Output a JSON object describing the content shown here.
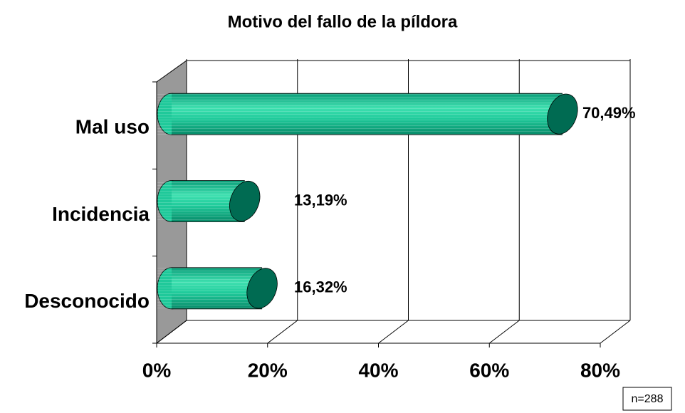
{
  "chart_data": {
    "type": "bar",
    "orientation": "horizontal",
    "title": "Motivo del fallo de la píldora",
    "categories": [
      "Mal uso",
      "Incidencia",
      "Desconocido"
    ],
    "values": [
      70.49,
      13.19,
      16.32
    ],
    "value_labels": [
      "70,49%",
      "13,19%",
      "16,32%"
    ],
    "color": "#1fc99a",
    "xlim": [
      0,
      80
    ],
    "xticks": [
      {
        "value": 0,
        "label": "0%"
      },
      {
        "value": 20,
        "label": "20%"
      },
      {
        "value": 40,
        "label": "40%"
      },
      {
        "value": 60,
        "label": "60%"
      },
      {
        "value": 80,
        "label": "80%"
      }
    ],
    "grid": true,
    "annotation": "n=288"
  }
}
